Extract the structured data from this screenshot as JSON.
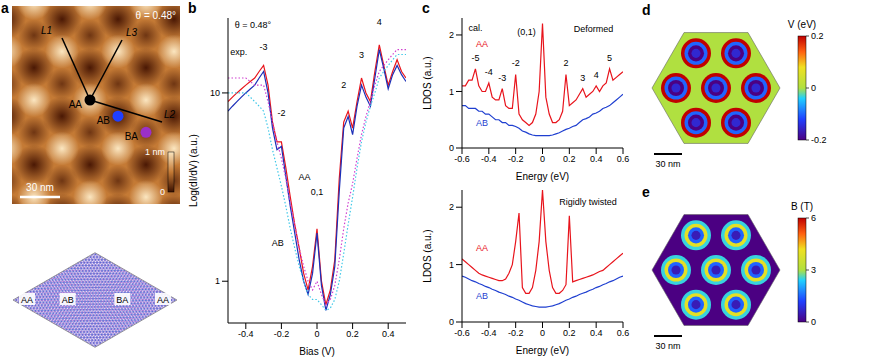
{
  "panel_a": {
    "panel": "a",
    "image": {
      "annotation": "θ = 0.48°",
      "points": [
        {
          "label": "AA",
          "color": "#000000"
        },
        {
          "label": "AB",
          "color": "#1f3fff"
        },
        {
          "label": "BA",
          "color": "#9b30c8"
        }
      ],
      "lines": [
        "L1",
        "L2",
        "L3"
      ],
      "colorbar": {
        "range": [
          0,
          1
        ],
        "ticks": [
          0,
          {
            "value": 1,
            "label": "1 nm"
          }
        ]
      },
      "scale_bar": "30 nm"
    },
    "lattice": {
      "labels": [
        "AA",
        "AB",
        "BA",
        "AA"
      ]
    }
  },
  "chart_data": [
    {
      "panel": "b",
      "type": "line",
      "log": "y",
      "x_label": "Bias (V)",
      "y_label": "Log(dI/dV) (a.u.)",
      "x": [
        -0.5,
        -0.475,
        -0.45,
        -0.425,
        -0.4,
        -0.375,
        -0.35,
        -0.325,
        -0.3,
        -0.275,
        -0.25,
        -0.225,
        -0.2,
        -0.175,
        -0.15,
        -0.125,
        -0.1,
        -0.075,
        -0.05,
        -0.025,
        0,
        0.025,
        0.05,
        0.075,
        0.1,
        0.125,
        0.15,
        0.175,
        0.2,
        0.225,
        0.25,
        0.275,
        0.3,
        0.325,
        0.35,
        0.375,
        0.4,
        0.425,
        0.45,
        0.475,
        0.5
      ],
      "xlim": [
        -0.5,
        0.5
      ],
      "xticks": [
        -0.4,
        -0.2,
        0,
        0.2,
        0.4
      ],
      "ylim": [
        0.6,
        25
      ],
      "yticks": [
        1,
        10
      ],
      "series": [
        {
          "color": "#e8141c",
          "line_style": "solid",
          "values": [
            9,
            9.5,
            10,
            10.5,
            11,
            11.5,
            12,
            13,
            14,
            11,
            7,
            5.5,
            5.5,
            4,
            2.8,
            2,
            1.5,
            1.1,
            0.9,
            1.2,
            1.9,
            1,
            0.75,
            0.9,
            1.3,
            3.5,
            7,
            8,
            6.5,
            9,
            12,
            10,
            9,
            13,
            18,
            14,
            11,
            13,
            15,
            13,
            12
          ]
        },
        {
          "color": "#1c2fb8",
          "line_style": "solid",
          "values": [
            8,
            8.5,
            9,
            9.5,
            10,
            10.5,
            11,
            12,
            13,
            10,
            6.5,
            5,
            5.2,
            3.6,
            2.5,
            1.8,
            1.3,
            1,
            0.85,
            1.1,
            1.8,
            0.95,
            0.7,
            0.85,
            1.2,
            3,
            6.5,
            7.5,
            6,
            8.5,
            11,
            9.5,
            8.5,
            12,
            17,
            13.5,
            10.5,
            12.5,
            14,
            12.5,
            11.5
          ]
        },
        {
          "color": "#d040d0",
          "line_style": "dotted",
          "values": [
            12,
            12,
            12,
            12,
            12,
            11.5,
            11,
            11,
            11,
            9,
            7,
            5.5,
            4.5,
            3.5,
            2.6,
            2,
            1.5,
            1.2,
            1,
            0.9,
            1,
            0.85,
            0.75,
            0.8,
            0.95,
            1.3,
            1.9,
            2.6,
            3.3,
            4.5,
            6,
            7.5,
            9,
            11,
            13,
            14,
            15,
            16,
            17,
            17,
            17
          ]
        },
        {
          "color": "#40c8e8",
          "line_style": "dotted",
          "values": [
            10,
            10,
            10,
            10,
            10,
            9.5,
            9,
            8.5,
            8,
            6.5,
            5,
            4,
            3.2,
            2.5,
            1.9,
            1.5,
            1.2,
            1,
            0.85,
            0.8,
            0.8,
            0.75,
            0.7,
            0.72,
            0.8,
            1,
            1.4,
            2,
            2.8,
            4,
            5.5,
            7,
            8.5,
            10,
            12,
            13,
            14,
            15,
            16,
            16,
            16
          ]
        }
      ],
      "annotations": [
        {
          "text": "θ = 0.48°",
          "x": -0.36,
          "y": 23
        },
        {
          "text": "exp.",
          "x": -0.44,
          "y": 16.5
        },
        {
          "text": "-3",
          "x": -0.3,
          "y": 17.5
        },
        {
          "text": "-2",
          "x": -0.2,
          "y": 7.8
        },
        {
          "text": "0,1",
          "x": 0,
          "y": 3
        },
        {
          "text": "2",
          "x": 0.15,
          "y": 11
        },
        {
          "text": "3",
          "x": 0.25,
          "y": 16
        },
        {
          "text": "4",
          "x": 0.35,
          "y": 24
        },
        {
          "text": "AA",
          "x": -0.07,
          "y": 3.6
        },
        {
          "text": "AB",
          "x": -0.22,
          "y": 1.6
        }
      ]
    },
    {
      "panel": "c",
      "type": "line",
      "x_label": "Energy (eV)",
      "y_label": "LDOS (a.u.)",
      "x": [
        -0.6,
        -0.575,
        -0.55,
        -0.525,
        -0.5,
        -0.475,
        -0.45,
        -0.425,
        -0.4,
        -0.375,
        -0.35,
        -0.325,
        -0.3,
        -0.275,
        -0.25,
        -0.225,
        -0.2,
        -0.175,
        -0.15,
        -0.125,
        -0.1,
        -0.075,
        -0.05,
        -0.025,
        0,
        0.025,
        0.05,
        0.075,
        0.1,
        0.125,
        0.15,
        0.175,
        0.2,
        0.225,
        0.25,
        0.275,
        0.3,
        0.325,
        0.35,
        0.375,
        0.4,
        0.425,
        0.45,
        0.475,
        0.5,
        0.525,
        0.55,
        0.575,
        0.6
      ],
      "xlim": [
        -0.6,
        0.6
      ],
      "xticks": [
        -0.6,
        -0.4,
        -0.2,
        0,
        0.2,
        0.4,
        0.6
      ],
      "ylim": [
        0,
        2.3
      ],
      "yticks": [
        0,
        1,
        2
      ],
      "series": [
        {
          "color": "#e8141c",
          "line_style": "solid",
          "values": [
            1.1,
            1.1,
            1.2,
            1.2,
            1.4,
            1.1,
            1.0,
            1.0,
            1.15,
            0.9,
            0.85,
            0.85,
            1.05,
            0.75,
            0.7,
            0.7,
            1.3,
            0.6,
            0.5,
            0.45,
            0.4,
            0.45,
            0.6,
            1.0,
            2.2,
            0.9,
            0.6,
            0.45,
            0.45,
            0.5,
            0.65,
            1.3,
            0.75,
            0.8,
            0.85,
            0.95,
            1.05,
            0.9,
            0.95,
            1.0,
            1.1,
            1.0,
            1.1,
            1.15,
            1.4,
            1.2,
            1.25,
            1.3,
            1.35
          ]
        },
        {
          "color": "#1f3fd0",
          "line_style": "solid",
          "values": [
            0.75,
            0.75,
            0.7,
            0.7,
            0.7,
            0.65,
            0.65,
            0.6,
            0.6,
            0.55,
            0.5,
            0.5,
            0.45,
            0.45,
            0.4,
            0.4,
            0.38,
            0.35,
            0.3,
            0.28,
            0.25,
            0.23,
            0.22,
            0.22,
            0.22,
            0.22,
            0.22,
            0.23,
            0.25,
            0.27,
            0.3,
            0.33,
            0.35,
            0.38,
            0.4,
            0.45,
            0.5,
            0.52,
            0.55,
            0.6,
            0.62,
            0.65,
            0.7,
            0.72,
            0.75,
            0.8,
            0.85,
            0.9,
            0.95
          ]
        }
      ],
      "annotations": [
        {
          "text": "cal.",
          "x": -0.5,
          "y": 2.12
        },
        {
          "text": "(0,1)",
          "x": -0.12,
          "y": 2.05
        },
        {
          "text": "Deformed",
          "x": 0.38,
          "y": 2.1
        },
        {
          "text": "-5",
          "x": -0.5,
          "y": 1.6
        },
        {
          "text": "-4",
          "x": -0.4,
          "y": 1.35
        },
        {
          "text": "-3",
          "x": -0.3,
          "y": 1.25
        },
        {
          "text": "-2",
          "x": -0.2,
          "y": 1.5
        },
        {
          "text": "2",
          "x": 0.175,
          "y": 1.5
        },
        {
          "text": "3",
          "x": 0.3,
          "y": 1.25
        },
        {
          "text": "4",
          "x": 0.4,
          "y": 1.3
        },
        {
          "text": "5",
          "x": 0.5,
          "y": 1.6
        },
        {
          "text": "AA",
          "x": -0.45,
          "y": 1.85,
          "color": "#e8141c"
        },
        {
          "text": "AB",
          "x": -0.45,
          "y": 0.45,
          "color": "#1f3fd0"
        }
      ]
    },
    {
      "type": "line",
      "x_label": "Energy (eV)",
      "y_label": "LDOS (a.u.)",
      "x": [
        -0.6,
        -0.575,
        -0.55,
        -0.525,
        -0.5,
        -0.475,
        -0.45,
        -0.425,
        -0.4,
        -0.375,
        -0.35,
        -0.325,
        -0.3,
        -0.275,
        -0.25,
        -0.225,
        -0.2,
        -0.175,
        -0.15,
        -0.125,
        -0.1,
        -0.075,
        -0.05,
        -0.025,
        0,
        0.025,
        0.05,
        0.075,
        0.1,
        0.125,
        0.15,
        0.175,
        0.2,
        0.225,
        0.25,
        0.275,
        0.3,
        0.325,
        0.35,
        0.375,
        0.4,
        0.425,
        0.45,
        0.475,
        0.5,
        0.525,
        0.55,
        0.575,
        0.6
      ],
      "xlim": [
        -0.6,
        0.6
      ],
      "xticks": [
        -0.6,
        -0.4,
        -0.2,
        0,
        0.2,
        0.4,
        0.6
      ],
      "ylim": [
        0,
        2.3
      ],
      "yticks": [
        0,
        1,
        2
      ],
      "series": [
        {
          "color": "#e8141c",
          "line_style": "solid",
          "values": [
            1.1,
            1.05,
            1.0,
            0.95,
            0.9,
            0.85,
            0.82,
            0.8,
            0.78,
            0.76,
            0.74,
            0.72,
            0.72,
            0.75,
            0.85,
            1.0,
            1.4,
            1.9,
            0.6,
            0.5,
            0.5,
            0.6,
            0.9,
            1.4,
            2.3,
            1.4,
            0.9,
            0.6,
            0.5,
            0.5,
            0.55,
            0.65,
            1.85,
            0.7,
            0.72,
            0.74,
            0.76,
            0.78,
            0.8,
            0.82,
            0.85,
            0.88,
            0.9,
            0.95,
            1.0,
            1.05,
            1.1,
            1.15,
            1.2
          ]
        },
        {
          "color": "#1f3fd0",
          "line_style": "solid",
          "values": [
            0.8,
            0.78,
            0.75,
            0.72,
            0.7,
            0.67,
            0.65,
            0.62,
            0.6,
            0.57,
            0.55,
            0.52,
            0.5,
            0.48,
            0.45,
            0.43,
            0.4,
            0.38,
            0.35,
            0.32,
            0.3,
            0.28,
            0.27,
            0.26,
            0.26,
            0.26,
            0.27,
            0.28,
            0.3,
            0.32,
            0.35,
            0.38,
            0.4,
            0.43,
            0.45,
            0.48,
            0.5,
            0.52,
            0.55,
            0.57,
            0.6,
            0.62,
            0.65,
            0.67,
            0.7,
            0.72,
            0.75,
            0.78,
            0.8
          ]
        }
      ],
      "annotations": [
        {
          "text": "Rigidly twisted",
          "x": 0.34,
          "y": 2.1
        },
        {
          "text": "AA",
          "x": -0.45,
          "y": 1.3,
          "color": "#e8141c"
        },
        {
          "text": "AB",
          "x": -0.45,
          "y": 0.45,
          "color": "#1f3fd0"
        }
      ]
    }
  ],
  "panel_d": {
    "panel": "d",
    "colorbar": {
      "label": "V (eV)",
      "range": [
        -0.2,
        0.2
      ],
      "ticks": [
        -0.2,
        0,
        0.2
      ]
    },
    "background": 0,
    "ring_values": [
      0.2,
      -0.1,
      -0.2,
      -0.15
    ],
    "scale_bar": "30 nm"
  },
  "panel_e": {
    "panel": "e",
    "colorbar": {
      "label": "B (T)",
      "range": [
        0,
        6
      ],
      "ticks": [
        0,
        3,
        6
      ]
    },
    "background": 0,
    "ring_values": [
      2.5,
      4,
      1.5,
      0.5
    ],
    "scale_bar": "30 nm"
  }
}
